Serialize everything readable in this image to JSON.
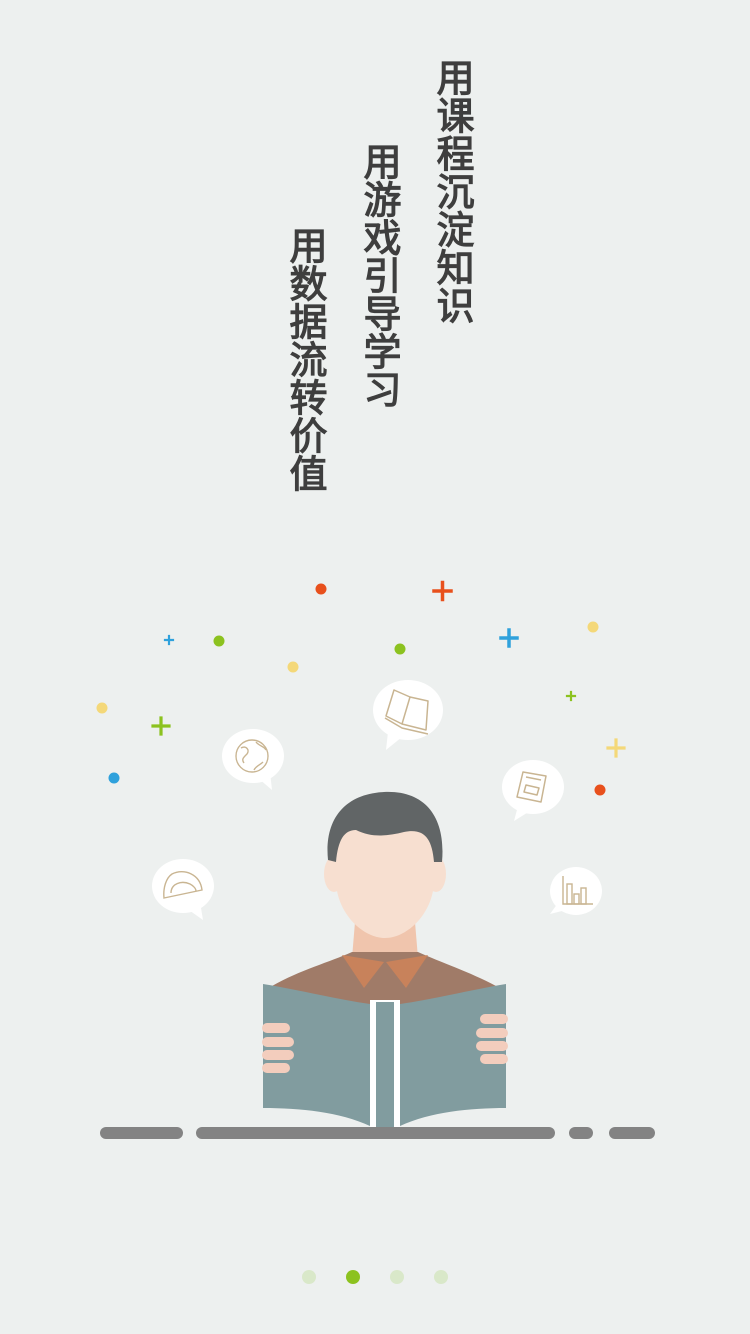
{
  "slogans": {
    "line1": "用课程沉淀知识",
    "line2": "用游戏引导学习",
    "line3": "用数据流转价值"
  },
  "illustration": {
    "subject": "reader-with-book",
    "bubble_icons": [
      "globe-icon",
      "open-book-icon",
      "notebook-icon",
      "protractor-icon",
      "bar-chart-icon"
    ]
  },
  "pager": {
    "page_count": 4,
    "active_index": 1
  },
  "colors": {
    "background": "#edf0ef",
    "accent_green": "#8cc21f",
    "accent_blue": "#2fa1dc",
    "accent_orange": "#e8501c",
    "accent_yellow": "#f4d879",
    "text": "#3e3e3e",
    "book": "#819c9f",
    "shirt": "#a07b68",
    "hair": "#616566",
    "skin": "#f7dfd0"
  }
}
